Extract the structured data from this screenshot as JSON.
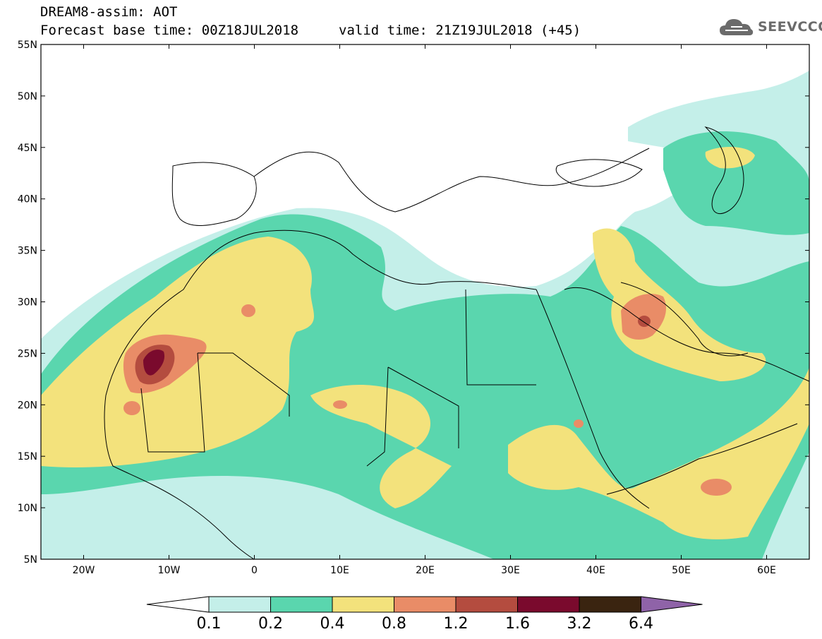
{
  "header": {
    "line1": "DREAM8-assim: AOT",
    "line2": "Forecast base time: 00Z18JUL2018",
    "valid": "valid time: 21Z19JUL2018 (+45)"
  },
  "logo": {
    "text": "SEEVCCC",
    "icon": "cloud-icon"
  },
  "map": {
    "lat_labels": [
      "55N",
      "50N",
      "45N",
      "40N",
      "35N",
      "30N",
      "25N",
      "20N",
      "15N",
      "10N",
      "5N"
    ],
    "lon_labels": [
      "20W",
      "10W",
      "0",
      "10E",
      "20E",
      "30E",
      "40E",
      "50E",
      "60E"
    ],
    "lat_range": [
      5,
      55
    ],
    "lon_range": [
      -25,
      65
    ]
  },
  "colorbar": {
    "labels": [
      "0.1",
      "0.2",
      "0.4",
      "0.8",
      "1.2",
      "1.6",
      "3.2",
      "6.4"
    ],
    "colors": [
      "#ffffff",
      "#c4efe9",
      "#5ad6ae",
      "#f3e27c",
      "#e98c67",
      "#b44c3f",
      "#7a0a2d",
      "#3a2410",
      "#8f63a8"
    ]
  },
  "colors": {
    "c1": "#c4efe9",
    "c2": "#5ad6ae",
    "c3": "#f3e27c",
    "c4": "#e98c67",
    "c5": "#b44c3f",
    "c6": "#7a0a2d"
  }
}
